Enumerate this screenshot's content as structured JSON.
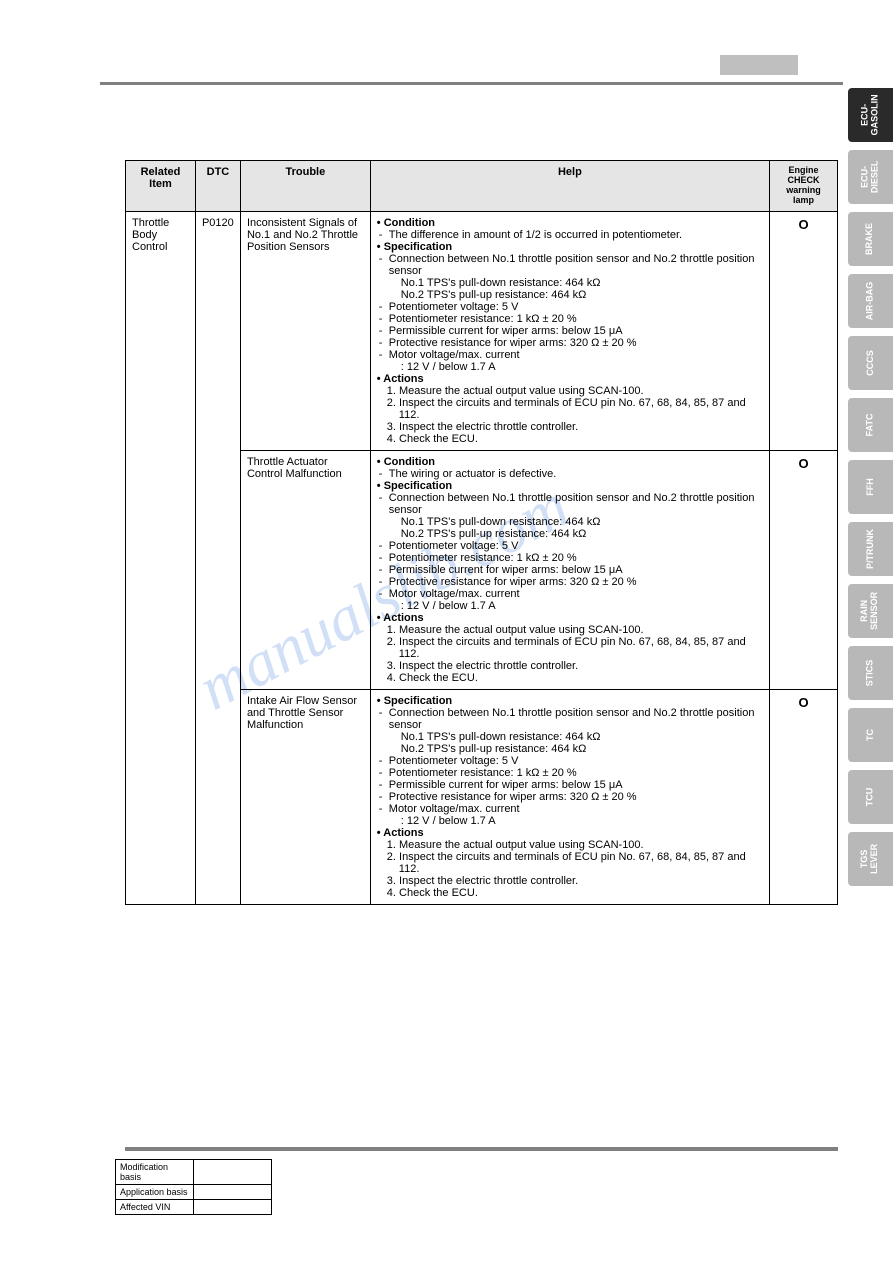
{
  "watermark": "manualslib.com",
  "headers": {
    "related": "Related Item",
    "dtc": "DTC",
    "trouble": "Trouble",
    "help": "Help",
    "check": "Engine CHECK warning lamp"
  },
  "rows": [
    {
      "related": "Throttle Body Control",
      "dtc": "P0120",
      "trouble": "Inconsistent Signals of No.1 and No.2 Throttle Position Sensors",
      "help": {
        "condition_title": "• Condition",
        "condition_items": [
          "The difference in amount of 1/2 is occurred in potentiometer."
        ],
        "spec_title": "• Specification",
        "spec_items": [
          "Connection between No.1 throttle position sensor and No.2 throttle position sensor",
          "No.1 TPS's pull-down resistance: 464 kΩ",
          "No.2 TPS's pull-up resistance: 464 kΩ",
          "Potentiometer voltage: 5 V",
          "Potentiometer resistance: 1 kΩ ± 20 %",
          "Permissible current for wiper arms: below 15 μA",
          "Protective resistance for wiper arms: 320 Ω ± 20 %",
          "Motor voltage/max. current",
          ": 12 V / below 1.7 A"
        ],
        "actions_title": "• Actions",
        "actions": [
          "1. Measure the actual output value using SCAN-100.",
          "2. Inspect the circuits and terminals of ECU pin No. 67, 68, 84, 85, 87 and 112.",
          "3. Inspect the electric throttle controller.",
          "4. Check the ECU."
        ]
      },
      "check": "O"
    },
    {
      "trouble": "Throttle Actuator Control Malfunction",
      "help": {
        "condition_title": "• Condition",
        "condition_items": [
          "The wiring or actuator is defective."
        ],
        "spec_title": "• Specification",
        "spec_items": [
          "Connection between No.1 throttle position sensor and No.2 throttle position sensor",
          "No.1 TPS's pull-down resistance: 464 kΩ",
          "No.2 TPS's pull-up resistance: 464 kΩ",
          "Potentiometer voltage: 5 V",
          "Potentiometer resistance: 1 kΩ ± 20 %",
          "Permissible current for wiper arms: below 15 μA",
          "Protective resistance for wiper arms: 320 Ω ± 20 %",
          "Motor voltage/max. current",
          ": 12 V / below 1.7 A"
        ],
        "actions_title": "• Actions",
        "actions": [
          "1. Measure the actual output value using SCAN-100.",
          "2. Inspect the circuits and terminals of ECU pin No. 67, 68, 84, 85, 87 and 112.",
          "3. Inspect the electric throttle controller.",
          "4. Check the ECU."
        ]
      },
      "check": "O"
    },
    {
      "trouble": "Intake Air Flow Sensor and Throttle Sensor Malfunction",
      "help": {
        "spec_title": "• Specification",
        "spec_items": [
          "Connection between No.1 throttle position sensor and No.2 throttle position sensor",
          "No.1 TPS's pull-down resistance: 464 kΩ",
          "No.2 TPS's pull-up resistance: 464 kΩ",
          "Potentiometer voltage: 5 V",
          "Potentiometer resistance: 1 kΩ ± 20 %",
          "Permissible current for wiper arms: below 15 μA",
          "Protective resistance for wiper arms: 320 Ω ± 20 %",
          "Motor voltage/max. current",
          ": 12 V / below 1.7 A"
        ],
        "actions_title": "• Actions",
        "actions": [
          "1. Measure the actual output value using SCAN-100.",
          "2. Inspect the circuits and terminals of ECU pin No. 67, 68, 84, 85, 87 and 112.",
          "3. Inspect the electric throttle controller.",
          "4. Check the ECU."
        ]
      },
      "check": "O"
    }
  ],
  "footer": {
    "mod": "Modification basis",
    "app": "Application basis",
    "vin": "Affected VIN"
  },
  "tabs": [
    {
      "label": "ECU-\nGASOLIN",
      "style": "dark"
    },
    {
      "label": "ECU-\nDIESEL",
      "style": "light"
    },
    {
      "label": "BRAKE",
      "style": "light"
    },
    {
      "label": "AIR-BAG",
      "style": "light"
    },
    {
      "label": "CCCS",
      "style": "light"
    },
    {
      "label": "FATC",
      "style": "light"
    },
    {
      "label": "FFH",
      "style": "light"
    },
    {
      "label": "P/TRUNK",
      "style": "light"
    },
    {
      "label": "RAIN\nSENSOR",
      "style": "light"
    },
    {
      "label": "STICS",
      "style": "light"
    },
    {
      "label": "TC",
      "style": "light"
    },
    {
      "label": "TCU",
      "style": "light"
    },
    {
      "label": "TGS\nLEVER",
      "style": "light"
    }
  ]
}
